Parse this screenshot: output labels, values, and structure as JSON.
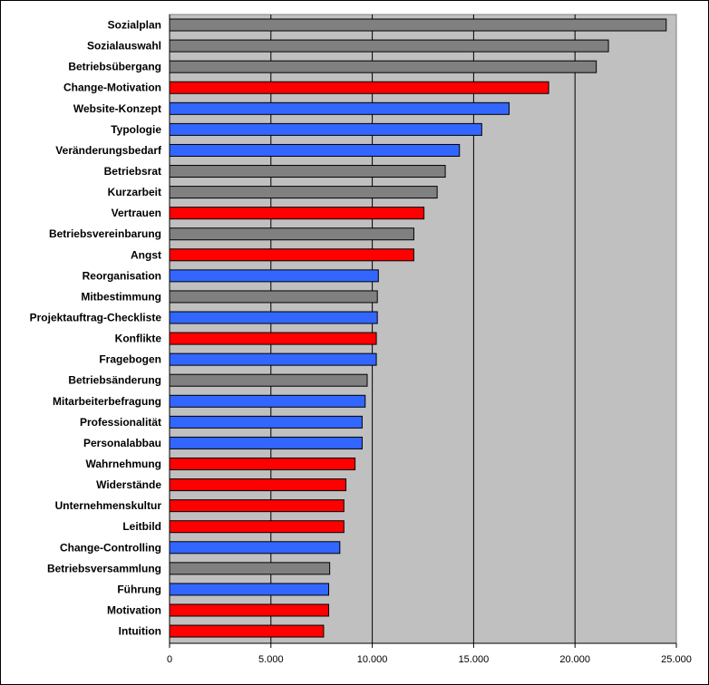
{
  "chart_data": {
    "type": "bar",
    "orientation": "horizontal",
    "categories": [
      "Sozialplan",
      "Sozialauswahl",
      "Betriebsübergang",
      "Change-Motivation",
      "Website-Konzept",
      "Typologie",
      "Veränderungsbedarf",
      "Betriebsrat",
      "Kurzarbeit",
      "Vertrauen",
      "Betriebsvereinbarung",
      "Angst",
      "Reorganisation",
      "Mitbestimmung",
      "Projektauftrag-Checkliste",
      "Konflikte",
      "Fragebogen",
      "Betriebsänderung",
      "Mitarbeiterbefragung",
      "Professionalität",
      "Personalabbau",
      "Wahrnehmung",
      "Widerstände",
      "Unternehmenskultur",
      "Leitbild",
      "Change-Controlling",
      "Betriebsversammlung",
      "Führung",
      "Motivation",
      "Intuition"
    ],
    "values": [
      24500,
      21650,
      21050,
      18700,
      16750,
      15400,
      14300,
      13600,
      13200,
      12550,
      12050,
      12050,
      10300,
      10250,
      10250,
      10200,
      10200,
      9750,
      9650,
      9500,
      9500,
      9150,
      8700,
      8600,
      8600,
      8400,
      7900,
      7850,
      7850,
      7600
    ],
    "groups": [
      "gray",
      "gray",
      "gray",
      "red",
      "blue",
      "blue",
      "blue",
      "gray",
      "gray",
      "red",
      "gray",
      "red",
      "blue",
      "gray",
      "blue",
      "red",
      "blue",
      "gray",
      "blue",
      "blue",
      "blue",
      "red",
      "red",
      "red",
      "red",
      "blue",
      "gray",
      "blue",
      "red",
      "red"
    ],
    "colors": {
      "gray": "#808080",
      "red": "#ff0000",
      "blue": "#3366ff"
    },
    "xlim": [
      0,
      25000
    ],
    "xticks": [
      0,
      5000,
      10000,
      15000,
      20000,
      25000
    ],
    "xtick_labels": [
      "0",
      "5.000",
      "10.000",
      "15.000",
      "20.000",
      "25.000"
    ],
    "grid": "vertical",
    "plot_background": "#c0c0c0",
    "legend": "none"
  }
}
